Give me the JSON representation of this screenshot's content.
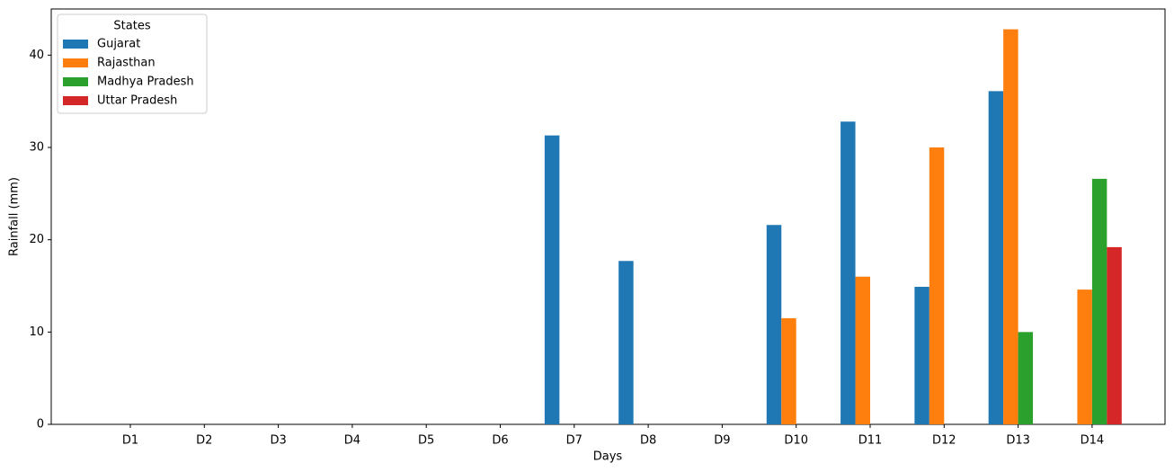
{
  "chart_data": {
    "type": "bar",
    "x_label": "Days",
    "y_label": "Rainfall (mm)",
    "categories": [
      "D1",
      "D2",
      "D3",
      "D4",
      "D5",
      "D6",
      "D7",
      "D8",
      "D9",
      "D10",
      "D11",
      "D12",
      "D13",
      "D14"
    ],
    "series": [
      {
        "name": "Gujarat",
        "color": "#1f77b4",
        "values": [
          0,
          0,
          0,
          0,
          0,
          0,
          31.3,
          17.7,
          0,
          21.6,
          32.8,
          14.9,
          36.1,
          0
        ]
      },
      {
        "name": "Rajasthan",
        "color": "#ff7f0e",
        "values": [
          0,
          0,
          0,
          0,
          0,
          0,
          0,
          0,
          0,
          11.5,
          16.0,
          30.0,
          42.8,
          14.6
        ]
      },
      {
        "name": "Madhya Pradesh",
        "color": "#2ca02c",
        "values": [
          0,
          0,
          0,
          0,
          0,
          0,
          0,
          0,
          0,
          0,
          0,
          0,
          10.0,
          26.6
        ]
      },
      {
        "name": "Uttar Pradesh",
        "color": "#d62728",
        "values": [
          0,
          0,
          0,
          0,
          0,
          0,
          0,
          0,
          0,
          0,
          0,
          0,
          0,
          19.2
        ]
      }
    ],
    "legend_title": "States",
    "legend_position": "upper-left",
    "ylim": [
      0,
      45
    ],
    "yticks": [
      0,
      10,
      20,
      30,
      40
    ],
    "grid": false
  }
}
